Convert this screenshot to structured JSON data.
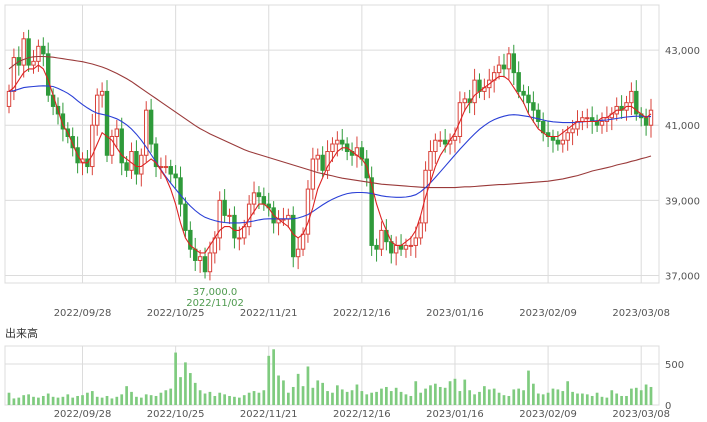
{
  "chart_data": [
    {
      "type": "candlestick",
      "title": "",
      "xlabel": "",
      "ylabel": "",
      "ylim": [
        36800,
        44200
      ],
      "y_ticks": [
        "43,000",
        "41,000",
        "39,000",
        "37,000"
      ],
      "y_tick_values": [
        43000,
        41000,
        39000,
        37000
      ],
      "x_ticks": [
        "2022/09/28",
        "2022/10/25",
        "2022/11/21",
        "2022/12/16",
        "2023/01/16",
        "2023/02/09",
        "2023/03/08"
      ],
      "x_tick_index": [
        15,
        34,
        53,
        72,
        91,
        110,
        129
      ],
      "grid": true,
      "annotation": {
        "price": "37,000.0",
        "date": "2022/11/02",
        "index": 40
      },
      "close": [
        41900,
        42800,
        42600,
        43300,
        42600,
        42700,
        43100,
        42900,
        41800,
        41500,
        41300,
        40900,
        40700,
        40400,
        40000,
        40100,
        39900,
        41000,
        41800,
        41900,
        40200,
        40700,
        40900,
        40000,
        39800,
        40300,
        39700,
        40200,
        41400,
        40500,
        39900,
        39900,
        39900,
        39700,
        39600,
        38900,
        38200,
        37700,
        37400,
        37500,
        37100,
        37600,
        38000,
        39000,
        38600,
        38600,
        38000,
        38000,
        38300,
        38900,
        39200,
        39100,
        38900,
        38800,
        38400,
        38500,
        38500,
        38600,
        37500,
        37700,
        38100,
        39300,
        40100,
        40200,
        39800,
        40300,
        40500,
        40600,
        40500,
        40300,
        40200,
        40400,
        40100,
        39600,
        37800,
        37700,
        38200,
        37900,
        37600,
        37800,
        37700,
        37800,
        37800,
        38000,
        38400,
        39800,
        40300,
        40600,
        40600,
        40500,
        40600,
        40700,
        41600,
        41700,
        41600,
        42200,
        41900,
        42000,
        42200,
        42400,
        42600,
        42500,
        42900,
        42400,
        41900,
        41800,
        41600,
        41400,
        41100,
        40800,
        40700,
        40600,
        40500,
        40600,
        40800,
        40900,
        41100,
        41200,
        41200,
        41100,
        41000,
        41100,
        41200,
        41300,
        41500,
        41400,
        41600,
        41900,
        41300,
        41200,
        41000,
        41400
      ],
      "ma_short": [
        41900,
        42000,
        42200,
        42400,
        42500,
        42500,
        42600,
        42500,
        42200,
        41800,
        41400,
        41000,
        40800,
        40500,
        40200,
        40000,
        40000,
        40200,
        40500,
        40800,
        40700,
        40600,
        40400,
        40200,
        40100,
        40000,
        39900,
        39900,
        40000,
        40100,
        40000,
        39800,
        39600,
        39300,
        38900,
        38400,
        38000,
        37800,
        37700,
        37600,
        37600,
        37800,
        38000,
        38200,
        38300,
        38300,
        38200,
        38200,
        38300,
        38500,
        38700,
        38900,
        38900,
        38800,
        38600,
        38500,
        38400,
        38300,
        38100,
        38000,
        38100,
        38400,
        38800,
        39300,
        39600,
        39900,
        40100,
        40300,
        40400,
        40400,
        40300,
        40200,
        40100,
        39900,
        39400,
        38900,
        38500,
        38200,
        37900,
        37800,
        37800,
        37900,
        38000,
        38200,
        38600,
        39100,
        39500,
        39900,
        40200,
        40400,
        40600,
        40800,
        41100,
        41400,
        41600,
        41800,
        41900,
        42000,
        42100,
        42200,
        42300,
        42300,
        42200,
        42000,
        41800,
        41600,
        41300,
        41100,
        40900,
        40800,
        40700,
        40700,
        40700,
        40800,
        40900,
        41000,
        41100,
        41100,
        41100,
        41100,
        41100,
        41200,
        41200,
        41300,
        41400,
        41400,
        41500,
        41500,
        41400,
        41300,
        41200,
        41300
      ],
      "ma_mid": [
        41900,
        41920,
        41960,
        42000,
        42020,
        42030,
        42040,
        42050,
        42040,
        42030,
        41980,
        41920,
        41850,
        41760,
        41650,
        41550,
        41460,
        41380,
        41320,
        41290,
        41260,
        41220,
        41170,
        41100,
        41010,
        40900,
        40760,
        40600,
        40420,
        40220,
        40020,
        39820,
        39630,
        39460,
        39300,
        39140,
        38990,
        38850,
        38730,
        38630,
        38550,
        38500,
        38460,
        38430,
        38410,
        38400,
        38400,
        38400,
        38410,
        38430,
        38450,
        38480,
        38500,
        38510,
        38510,
        38510,
        38510,
        38510,
        38510,
        38530,
        38570,
        38620,
        38700,
        38790,
        38880,
        38960,
        39030,
        39090,
        39140,
        39180,
        39200,
        39210,
        39210,
        39200,
        39180,
        39150,
        39120,
        39100,
        39090,
        39080,
        39080,
        39090,
        39110,
        39150,
        39230,
        39340,
        39470,
        39610,
        39760,
        39910,
        40060,
        40210,
        40360,
        40500,
        40640,
        40770,
        40890,
        40990,
        41080,
        41150,
        41200,
        41240,
        41270,
        41280,
        41270,
        41250,
        41230,
        41200,
        41170,
        41140,
        41110,
        41090,
        41080,
        41070,
        41070,
        41070,
        41080,
        41090,
        41100,
        41110,
        41120,
        41130,
        41140,
        41160,
        41180,
        41200,
        41220,
        41230,
        41240,
        41240,
        41230,
        41230
      ],
      "ma_long": [
        42500,
        42600,
        42700,
        42750,
        42800,
        42820,
        42830,
        42830,
        42820,
        42810,
        42790,
        42770,
        42750,
        42730,
        42710,
        42690,
        42660,
        42630,
        42590,
        42550,
        42500,
        42440,
        42380,
        42310,
        42240,
        42160,
        42070,
        41980,
        41890,
        41800,
        41710,
        41620,
        41530,
        41440,
        41350,
        41260,
        41170,
        41080,
        40990,
        40910,
        40840,
        40770,
        40710,
        40650,
        40590,
        40530,
        40470,
        40410,
        40350,
        40300,
        40260,
        40220,
        40180,
        40140,
        40100,
        40060,
        40020,
        39980,
        39940,
        39900,
        39860,
        39820,
        39780,
        39740,
        39710,
        39680,
        39650,
        39620,
        39590,
        39570,
        39550,
        39530,
        39510,
        39490,
        39470,
        39450,
        39430,
        39420,
        39410,
        39400,
        39390,
        39380,
        39370,
        39360,
        39350,
        39340,
        39340,
        39340,
        39340,
        39340,
        39340,
        39340,
        39350,
        39360,
        39360,
        39370,
        39380,
        39390,
        39400,
        39410,
        39420,
        39420,
        39430,
        39440,
        39450,
        39460,
        39470,
        39480,
        39490,
        39500,
        39510,
        39530,
        39550,
        39570,
        39600,
        39630,
        39660,
        39700,
        39740,
        39780,
        39810,
        39840,
        39870,
        39900,
        39940,
        39970,
        40000,
        40040,
        40070,
        40110,
        40140,
        40180
      ]
    },
    {
      "type": "bar",
      "title": "出来高",
      "y_ticks": [
        "500",
        "0"
      ],
      "y_tick_values": [
        500,
        0
      ],
      "ylim": [
        0,
        720
      ],
      "x_ticks": [
        "2022/09/28",
        "2022/10/25",
        "2022/11/21",
        "2022/12/16",
        "2023/01/16",
        "2023/02/09",
        "2023/03/08"
      ],
      "x_tick_index": [
        15,
        34,
        53,
        72,
        91,
        110,
        129
      ],
      "values": [
        150,
        80,
        90,
        120,
        130,
        100,
        90,
        110,
        140,
        100,
        90,
        100,
        130,
        90,
        110,
        120,
        150,
        170,
        100,
        90,
        110,
        80,
        100,
        130,
        230,
        160,
        100,
        90,
        130,
        120,
        110,
        150,
        180,
        200,
        640,
        340,
        520,
        390,
        270,
        180,
        140,
        160,
        110,
        150,
        130,
        110,
        100,
        90,
        120,
        150,
        170,
        150,
        180,
        600,
        680,
        360,
        300,
        150,
        220,
        380,
        230,
        470,
        210,
        300,
        270,
        170,
        150,
        240,
        190,
        160,
        180,
        250,
        170,
        130,
        150,
        160,
        200,
        220,
        170,
        210,
        160,
        130,
        110,
        290,
        150,
        200,
        240,
        260,
        220,
        210,
        290,
        320,
        170,
        310,
        180,
        130,
        160,
        230,
        190,
        200,
        150,
        120,
        110,
        190,
        200,
        180,
        420,
        260,
        140,
        130,
        150,
        200,
        190,
        170,
        290,
        160,
        140,
        140,
        130,
        110,
        150,
        100,
        90,
        180,
        140,
        110,
        110,
        200,
        210,
        180,
        250,
        220
      ]
    }
  ],
  "colors": {
    "up": "#d9423a",
    "down": "#2f9a3a",
    "ma_short": "#dd2222",
    "ma_mid": "#2a3fd6",
    "ma_long": "#9a3a3a",
    "volume": "#7fcb7f",
    "grid": "#dcdcdc",
    "axis_text": "#555555",
    "annotation": "#4e9a4e"
  }
}
